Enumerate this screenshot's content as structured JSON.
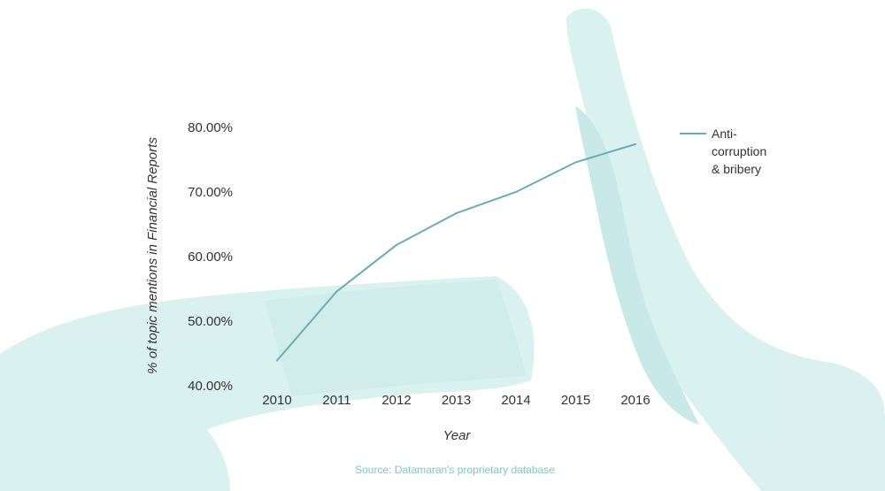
{
  "chart_data": {
    "type": "line",
    "x": [
      "2010",
      "2011",
      "2012",
      "2013",
      "2014",
      "2015",
      "2016"
    ],
    "series": [
      {
        "name": "Anti-corruption & bribery",
        "legend_lines": [
          "Anti-",
          "corruption",
          "& bribery"
        ],
        "values": [
          43.9,
          54.6,
          61.8,
          66.7,
          70.0,
          74.6,
          77.4
        ],
        "color": "#6aadb5"
      }
    ],
    "yticks": [
      "40.00%",
      "50.00%",
      "60.00%",
      "70.00%",
      "80.00%"
    ],
    "ylim": [
      40,
      80
    ],
    "xlabel": "Year",
    "ylabel": "% of topic mentions in Financial Reports",
    "legend_position": "right",
    "grid": false
  },
  "source": "Source: Datamaran's proprietary database",
  "colors": {
    "background_art": "#c9ecea",
    "source_text": "#7fc6c6"
  }
}
